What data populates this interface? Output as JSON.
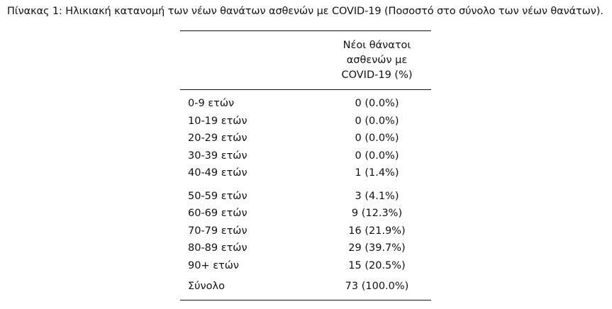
{
  "caption": "Πίνακας 1: Ηλικιακή κατανομή των νέων θανάτων ασθενών με COVID-19 (Ποσοστό στο σύνολο των νέων θανάτων).",
  "table": {
    "header_lines": [
      "Νέοι θάνατοι",
      "ασθενών με",
      "COVID-19 (%)"
    ],
    "group1": [
      {
        "label": "0-9 ετών",
        "value": "0 (0.0%)"
      },
      {
        "label": "10-19 ετών",
        "value": "0 (0.0%)"
      },
      {
        "label": "20-29 ετών",
        "value": "0 (0.0%)"
      },
      {
        "label": "30-39 ετών",
        "value": "0 (0.0%)"
      },
      {
        "label": "40-49 ετών",
        "value": "1 (1.4%)"
      }
    ],
    "group2": [
      {
        "label": "50-59 ετών",
        "value": "3 (4.1%)"
      },
      {
        "label": "60-69 ετών",
        "value": "9 (12.3%)"
      },
      {
        "label": "70-79 ετών",
        "value": "16 (21.9%)"
      },
      {
        "label": "80-89 ετών",
        "value": "29 (39.7%)"
      },
      {
        "label": "90+ ετών",
        "value": "15 (20.5%)"
      }
    ],
    "total": {
      "label": "Σύνολο",
      "value": "73 (100.0%)"
    }
  }
}
